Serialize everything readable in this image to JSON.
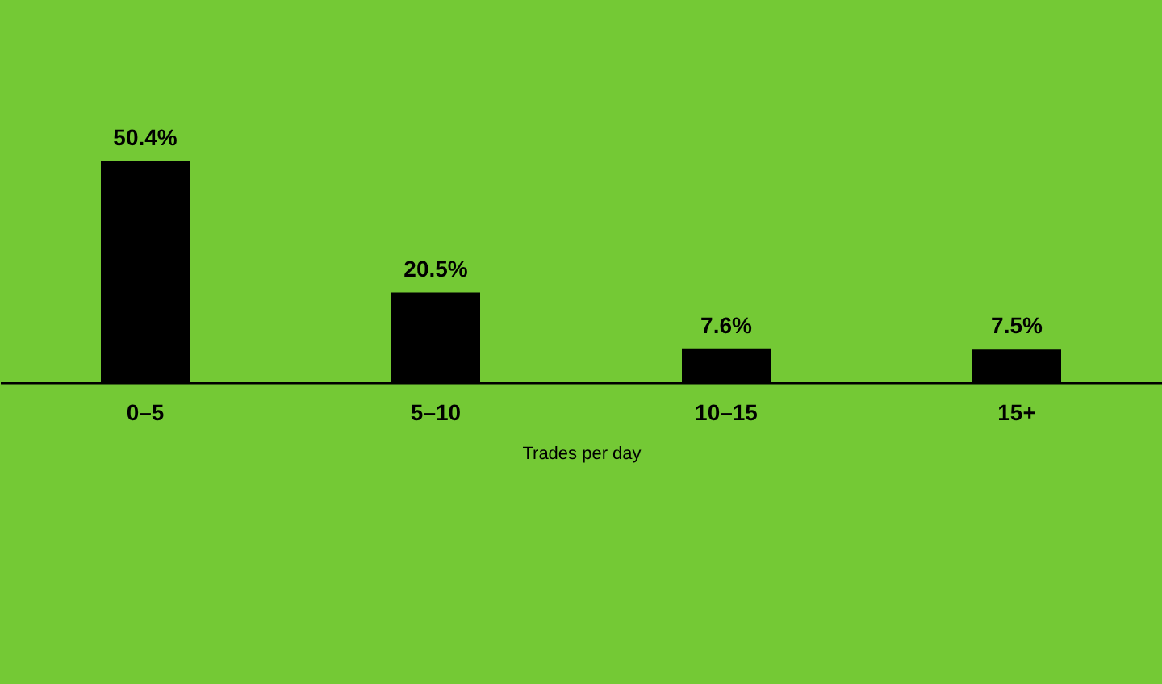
{
  "chart_data": {
    "type": "bar",
    "xlabel": "Trades per day",
    "categories": [
      "0–5",
      "5–10",
      "10–15",
      "15+"
    ],
    "values": [
      50.4,
      20.5,
      7.6,
      7.5
    ],
    "color": "#000000",
    "value_labels": [
      "50.4%",
      "20.5%",
      "7.6%",
      "7.5%"
    ],
    "tick_labels": "x",
    "grid": false
  }
}
